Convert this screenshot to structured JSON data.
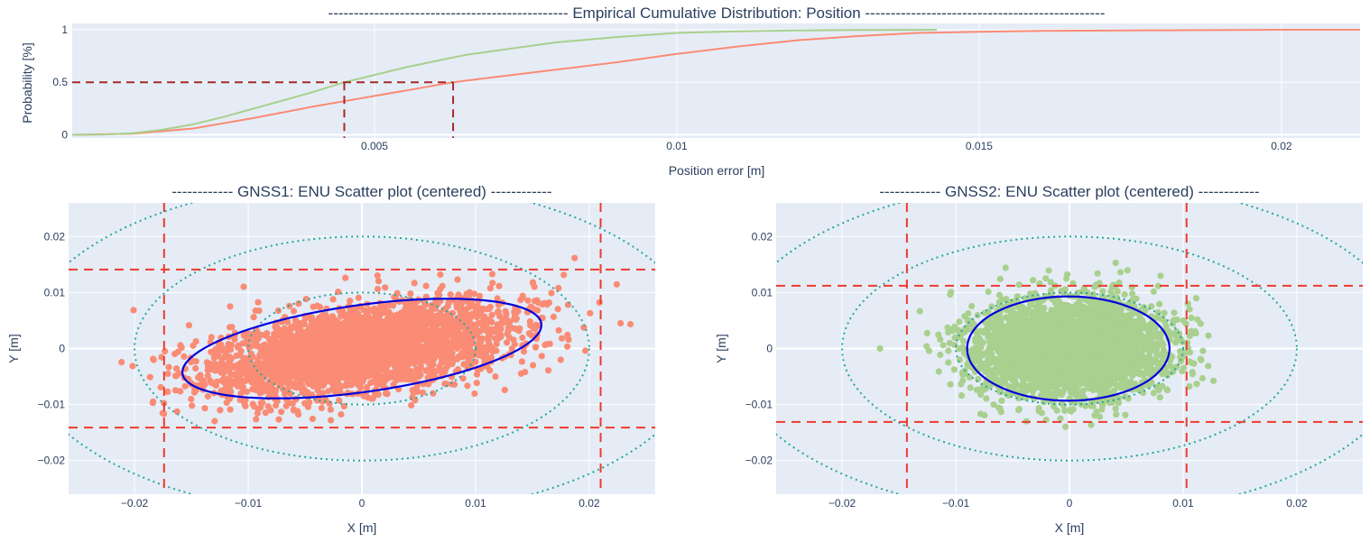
{
  "chart_data": [
    {
      "type": "line",
      "title": "-----------------------------------------------  Empirical Cumulative Distribution: Position  -----------------------------------------------",
      "xlabel": "Position error [m]",
      "ylabel": "Probability [%]",
      "xlim": [
        0,
        0.0213
      ],
      "ylim": [
        -0.03,
        1.06
      ],
      "xticks": [
        0.005,
        0.01,
        0.015,
        0.02
      ],
      "xtick_labels": [
        "0.005",
        "0.01",
        "0.015",
        "0.02"
      ],
      "yticks": [
        0,
        0.5,
        1
      ],
      "ytick_labels": [
        "0",
        "0.5",
        "1"
      ],
      "grid": true,
      "series": [
        {
          "name": "GNSS1",
          "color": "#fa8b74",
          "x": [
            0,
            0.001,
            0.002,
            0.003,
            0.004,
            0.0045,
            0.005,
            0.0055,
            0.006,
            0.0063,
            0.007,
            0.008,
            0.009,
            0.01,
            0.011,
            0.012,
            0.013,
            0.014,
            0.015,
            0.016,
            0.018,
            0.02,
            0.0213
          ],
          "y": [
            0,
            0.01,
            0.06,
            0.16,
            0.27,
            0.32,
            0.37,
            0.42,
            0.47,
            0.5,
            0.55,
            0.62,
            0.69,
            0.77,
            0.84,
            0.9,
            0.94,
            0.97,
            0.98,
            0.99,
            0.995,
            1,
            1
          ]
        },
        {
          "name": "GNSS2",
          "color": "#a9d08e",
          "x": [
            0,
            0.0005,
            0.001,
            0.0015,
            0.002,
            0.0025,
            0.003,
            0.0035,
            0.004,
            0.0045,
            0.005,
            0.0055,
            0.006,
            0.0065,
            0.007,
            0.0075,
            0.008,
            0.009,
            0.01,
            0.011,
            0.012,
            0.013,
            0.0143
          ],
          "y": [
            0,
            0.003,
            0.015,
            0.05,
            0.1,
            0.17,
            0.25,
            0.33,
            0.41,
            0.5,
            0.57,
            0.64,
            0.7,
            0.76,
            0.8,
            0.84,
            0.88,
            0.93,
            0.97,
            0.985,
            0.993,
            0.997,
            1
          ]
        }
      ],
      "annotations": {
        "median_level": 0.5,
        "median_x": [
          0.0045,
          0.0063
        ],
        "color": "#a52a2a"
      }
    },
    {
      "type": "scatter",
      "title": "------------ GNSS1: ENU Scatter plot (centered) ------------",
      "xlabel": "X [m]",
      "ylabel": "Y [m]",
      "xlim": [
        -0.0258,
        0.0258
      ],
      "ylim": [
        -0.026,
        0.026
      ],
      "xticks": [
        -0.02,
        -0.01,
        0,
        0.01,
        0.02
      ],
      "xtick_labels": [
        "−0.02",
        "−0.01",
        "0",
        "0.01",
        "0.02"
      ],
      "yticks": [
        -0.02,
        -0.01,
        0,
        0.01,
        0.02
      ],
      "ytick_labels": [
        "−0.02",
        "−0.01",
        "0",
        "0.01",
        "0.02"
      ],
      "grid": true,
      "point_color": "#fa8b74",
      "cloud": {
        "cx": 0.0,
        "cy": 0.0,
        "sx": 0.0065,
        "sy": 0.0042,
        "rho": 0.45,
        "n": 3200,
        "seed": 11
      },
      "ellipse": {
        "cx": 0.0,
        "cy": 0.0,
        "a": 0.0165,
        "b": 0.0075,
        "angle_deg": 19,
        "color": "#0000dd"
      },
      "circles": {
        "radii": [
          0.01,
          0.02,
          0.03
        ],
        "color": "#26a69a"
      },
      "limit_lines": {
        "x": [
          -0.0174,
          0.021
        ],
        "y": [
          -0.0141,
          0.0141
        ],
        "color": "#ef3a2e"
      }
    },
    {
      "type": "scatter",
      "title": "------------ GNSS2: ENU Scatter plot (centered) ------------",
      "xlabel": "X [m]",
      "ylabel": "Y [m]",
      "xlim": [
        -0.0258,
        0.0258
      ],
      "ylim": [
        -0.026,
        0.026
      ],
      "xticks": [
        -0.02,
        -0.01,
        0,
        0.01,
        0.02
      ],
      "xtick_labels": [
        "−0.02",
        "−0.01",
        "0",
        "0.01",
        "0.02"
      ],
      "yticks": [
        -0.02,
        -0.01,
        0,
        0.01,
        0.02
      ],
      "ytick_labels": [
        "−0.02",
        "−0.01",
        "0",
        "0.01",
        "0.02"
      ],
      "grid": true,
      "point_color": "#a9d08e",
      "cloud": {
        "cx": 0.0,
        "cy": 0.0,
        "sx": 0.0042,
        "sy": 0.0043,
        "rho": 0.0,
        "n": 3200,
        "seed": 23
      },
      "ellipse": {
        "cx": -0.0001,
        "cy": 0.0,
        "a": 0.0089,
        "b": 0.0093,
        "angle_deg": 0,
        "color": "#0000dd"
      },
      "circles": {
        "radii": [
          0.01,
          0.02,
          0.03
        ],
        "color": "#26a69a"
      },
      "limit_lines": {
        "x": [
          -0.0143,
          0.0103
        ],
        "y": [
          -0.0131,
          0.0112
        ],
        "color": "#ef3a2e"
      }
    }
  ]
}
